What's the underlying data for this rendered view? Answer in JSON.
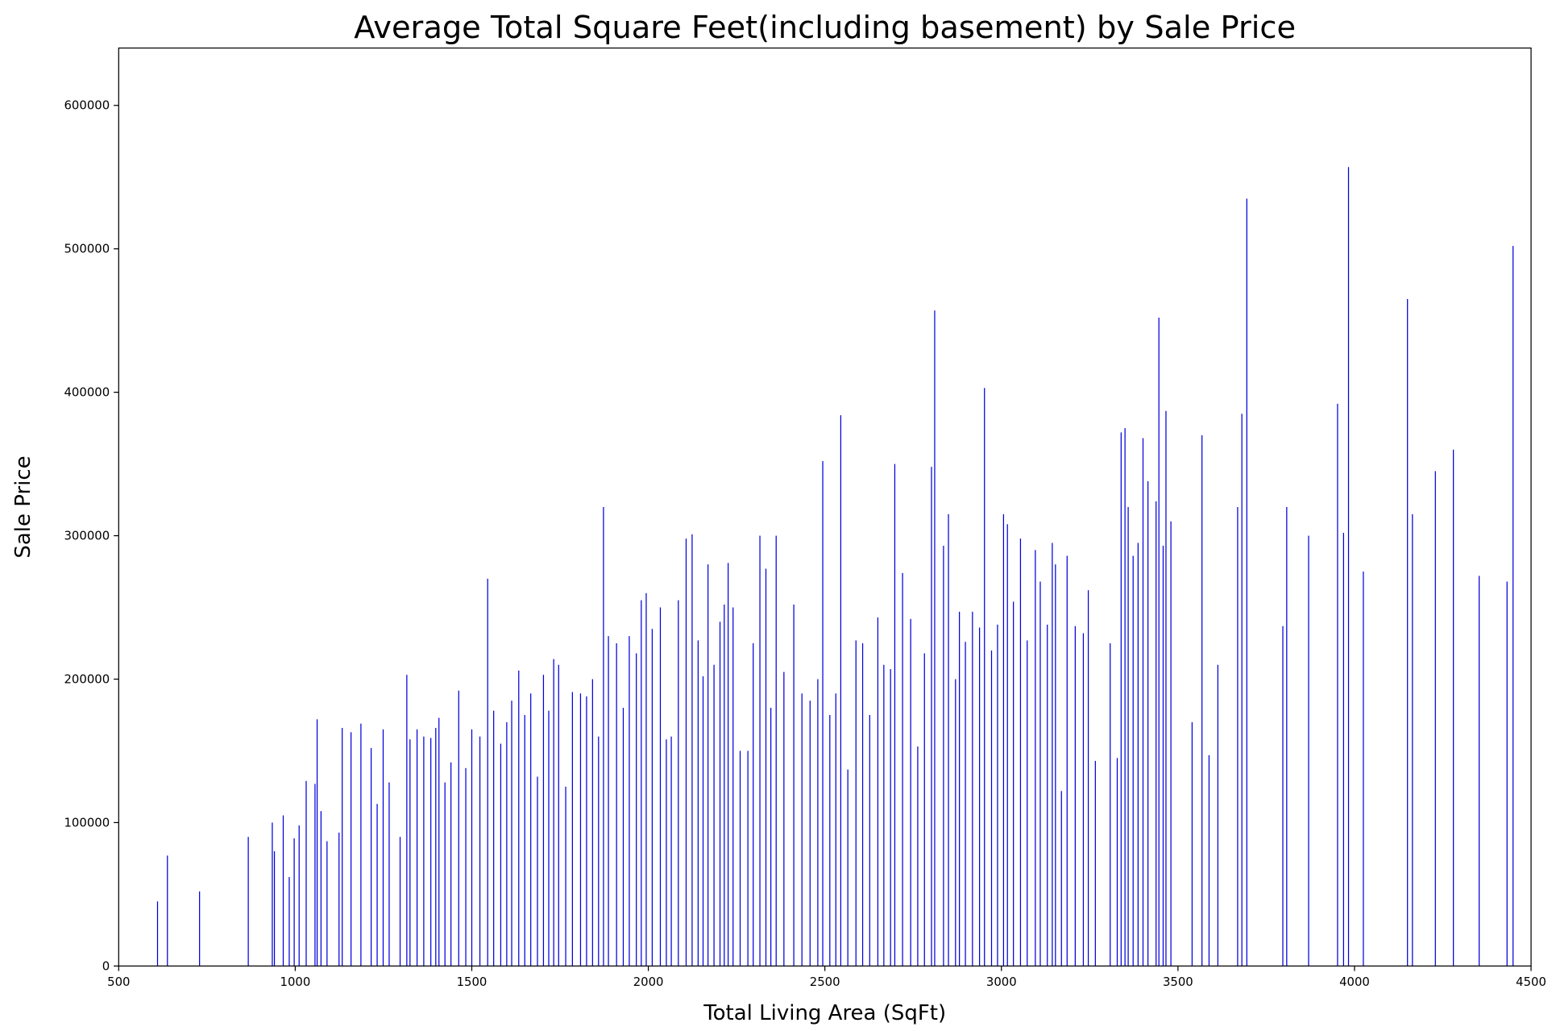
{
  "chart_data": {
    "type": "bar",
    "title": "Average Total Square Feet(including basement) by Sale Price",
    "xlabel": "Total Living Area (SqFt)",
    "ylabel": "Sale Price",
    "color": "#0000dd",
    "xlim": [
      500,
      4500
    ],
    "xticks": [
      500,
      1000,
      1500,
      2000,
      2500,
      3000,
      3500,
      4000,
      4500
    ],
    "ylim": [
      0,
      640000
    ],
    "yticks": [
      0,
      100000,
      200000,
      300000,
      400000,
      500000,
      600000
    ],
    "x": [
      610,
      638,
      729,
      867,
      935,
      941,
      966,
      983,
      997,
      1011,
      1031,
      1056,
      1062,
      1073,
      1090,
      1124,
      1133,
      1158,
      1186,
      1215,
      1232,
      1249,
      1266,
      1297,
      1316,
      1325,
      1345,
      1364,
      1384,
      1398,
      1407,
      1424,
      1441,
      1463,
      1483,
      1500,
      1523,
      1545,
      1562,
      1582,
      1599,
      1613,
      1633,
      1650,
      1667,
      1686,
      1703,
      1718,
      1732,
      1746,
      1766,
      1785,
      1808,
      1825,
      1842,
      1859,
      1873,
      1887,
      1910,
      1929,
      1946,
      1966,
      1980,
      1994,
      2011,
      2034,
      2051,
      2065,
      2085,
      2107,
      2124,
      2141,
      2155,
      2169,
      2186,
      2203,
      2215,
      2226,
      2240,
      2260,
      2282,
      2297,
      2316,
      2333,
      2347,
      2362,
      2384,
      2412,
      2435,
      2458,
      2480,
      2494,
      2514,
      2531,
      2545,
      2565,
      2588,
      2607,
      2627,
      2650,
      2667,
      2686,
      2698,
      2720,
      2743,
      2763,
      2782,
      2802,
      2811,
      2836,
      2850,
      2870,
      2881,
      2898,
      2918,
      2938,
      2952,
      2972,
      2989,
      3006,
      3017,
      3034,
      3054,
      3073,
      3096,
      3110,
      3130,
      3144,
      3153,
      3170,
      3186,
      3209,
      3232,
      3246,
      3266,
      3308,
      3328,
      3339,
      3350,
      3359,
      3373,
      3387,
      3401,
      3415,
      3438,
      3446,
      3458,
      3466,
      3480,
      3540,
      3568,
      3588,
      3613,
      3669,
      3681,
      3695,
      3797,
      3808,
      3870,
      3952,
      3969,
      3983,
      4025,
      4150,
      4164,
      4229,
      4280,
      4353,
      4432,
      4449
    ],
    "values": [
      45000,
      77000,
      52000,
      90000,
      100000,
      80000,
      105000,
      62000,
      89000,
      98000,
      129000,
      127000,
      172000,
      108000,
      87000,
      93000,
      166000,
      163000,
      169000,
      152000,
      113000,
      165000,
      128000,
      90000,
      203000,
      158000,
      165000,
      160000,
      159000,
      166000,
      173000,
      128000,
      142000,
      192000,
      138000,
      165000,
      160000,
      270000,
      178000,
      155000,
      170000,
      185000,
      206000,
      175000,
      190000,
      132000,
      203000,
      178000,
      214000,
      210000,
      125000,
      191000,
      190000,
      188000,
      200000,
      160000,
      320000,
      230000,
      225000,
      180000,
      230000,
      218000,
      255000,
      260000,
      235000,
      250000,
      158000,
      160000,
      255000,
      298000,
      301000,
      227000,
      202000,
      280000,
      210000,
      240000,
      252000,
      281000,
      250000,
      150000,
      150000,
      225000,
      300000,
      277000,
      180000,
      300000,
      205000,
      252000,
      190000,
      185000,
      200000,
      352000,
      175000,
      190000,
      384000,
      137000,
      227000,
      225000,
      175000,
      243000,
      210000,
      207000,
      350000,
      274000,
      242000,
      153000,
      218000,
      348000,
      457000,
      293000,
      315000,
      200000,
      247000,
      226000,
      247000,
      236000,
      403000,
      220000,
      238000,
      315000,
      308000,
      254000,
      298000,
      227000,
      290000,
      268000,
      238000,
      295000,
      280000,
      122000,
      286000,
      237000,
      232000,
      262000,
      143000,
      225000,
      145000,
      372000,
      375000,
      320000,
      286000,
      295000,
      368000,
      338000,
      324000,
      452000,
      293000,
      387000,
      310000,
      170000,
      370000,
      147000,
      210000,
      320000,
      385000,
      535000,
      237000,
      320000,
      300000,
      392000,
      302000,
      557000,
      275000,
      465000,
      315000,
      345000,
      360000,
      272000,
      268000,
      502000
    ]
  }
}
